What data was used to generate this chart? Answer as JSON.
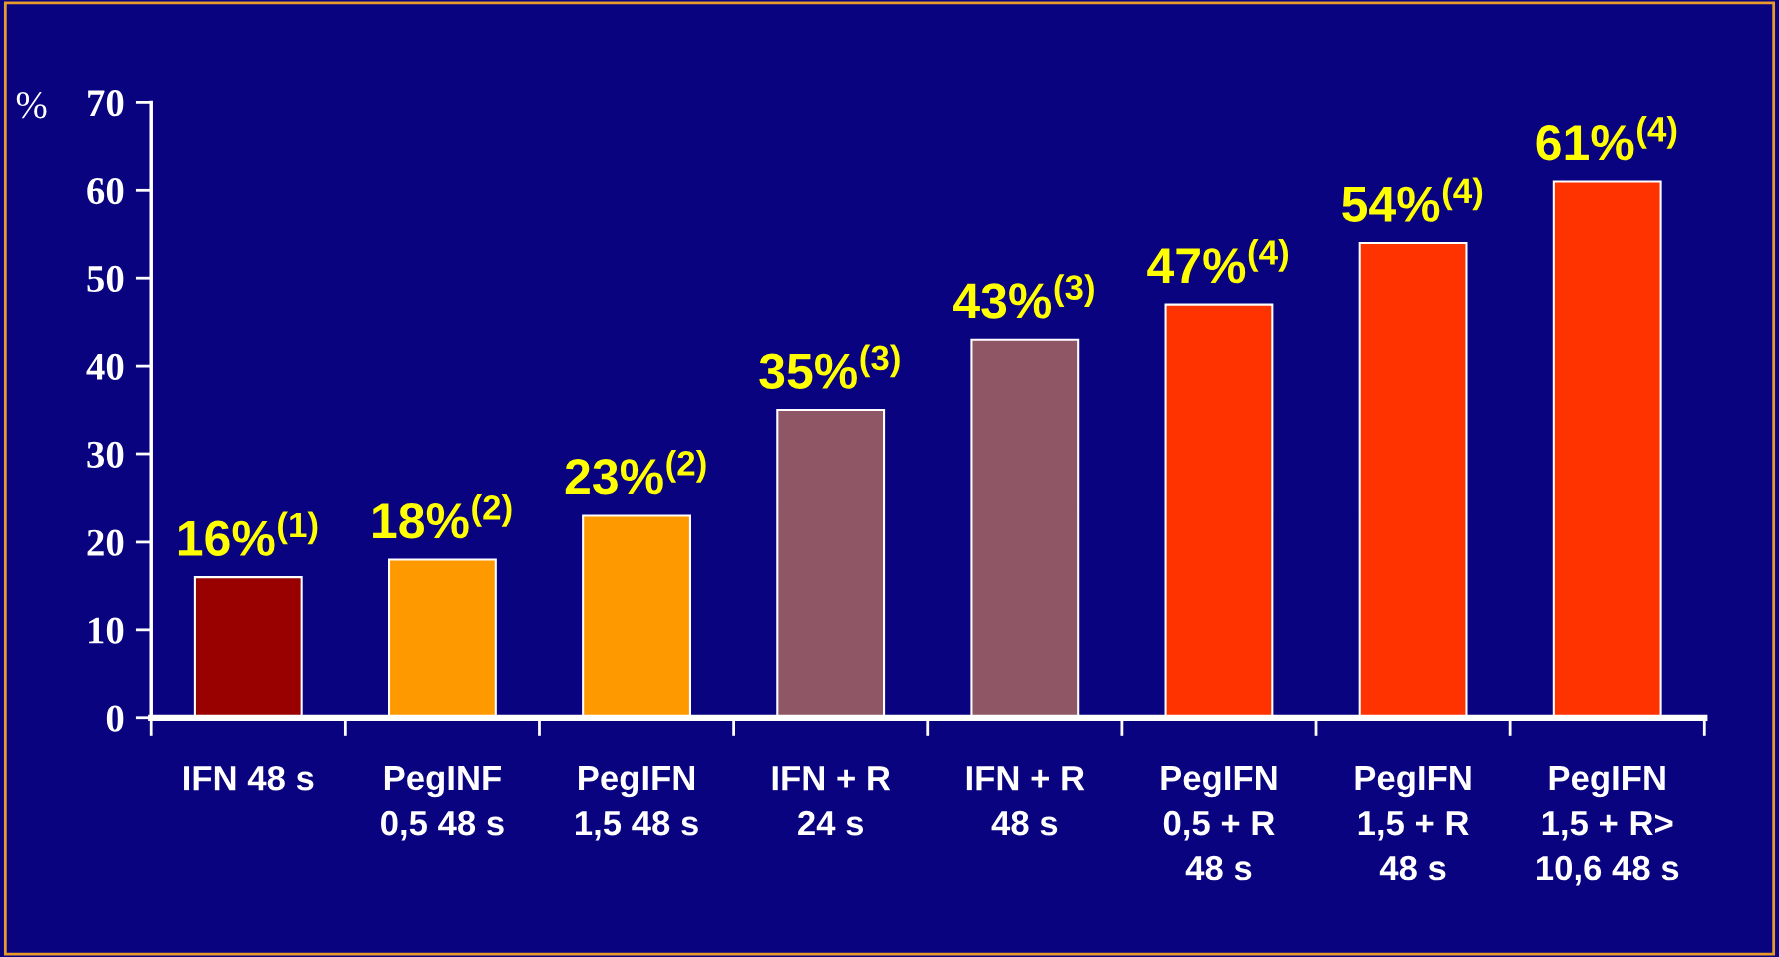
{
  "chart_data": {
    "type": "bar",
    "ylabel": "%",
    "categories": [
      "IFN 48 s",
      "PegINF\n0,5 48 s",
      "PegIFN\n1,5 48 s",
      "IFN + R\n24 s",
      "IFN + R\n48 s",
      "PegIFN\n0,5 + R\n48 s",
      "PegIFN\n1,5 + R\n48 s",
      "PegIFN\n1,5 + R>\n10,6 48 s"
    ],
    "values": [
      16,
      18,
      23,
      35,
      43,
      47,
      54,
      61
    ],
    "colors": [
      "#990000",
      "#ff9900",
      "#ff9900",
      "#8f5766",
      "#8f5766",
      "#ff3300",
      "#ff3300",
      "#ff3300"
    ],
    "value_labels": [
      "16%$^{(1)}$",
      "18%$^{(2)}$",
      "23%$^{(2)}$",
      "35%$^{(3)}$",
      "43%$^{(3)}$",
      "47%$^{(4)}$",
      "54%$^{(4)}$",
      "61%$^{(4)}$"
    ],
    "ylim": [
      0,
      70
    ],
    "yticks": [
      0,
      10,
      20,
      30,
      40,
      50,
      60,
      70
    ],
    "grid": false
  }
}
